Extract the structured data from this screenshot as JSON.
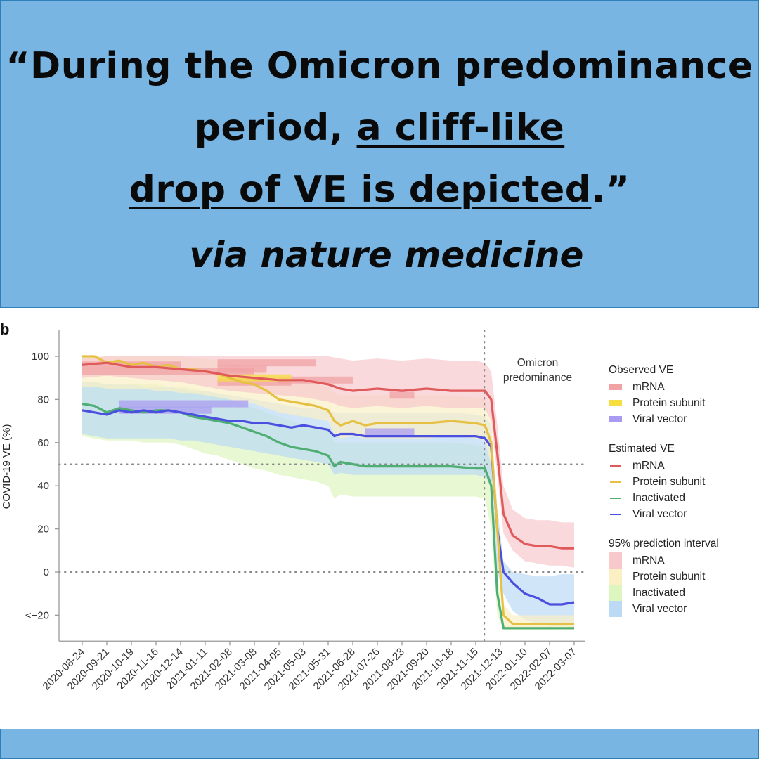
{
  "header": {
    "quote_part1": "“During the Omicron predominance period, ",
    "quote_underlined_1": "a cliff-like",
    "quote_underlined_2": "drop of VE is depicted",
    "quote_end": ".”",
    "source": "via nature medicine"
  },
  "colors": {
    "banner": "#78b5e3",
    "mrna": "#e0595b",
    "protein": "#e6c043",
    "inactivated": "#4fae73",
    "viral": "#4b4fe0",
    "band_mrna": "#f7c9cc",
    "band_protein": "#fbefc4",
    "band_inactivated": "#ddf5bf",
    "band_viral": "#bcdaf4",
    "obs_mrna": "#f0a2a4",
    "obs_protein": "#f5de3e",
    "obs_viral": "#a99cf0"
  },
  "chart_data": {
    "type": "line",
    "panel_label": "b",
    "title": "",
    "xlabel": "",
    "ylabel": "COVID-19 VE (%)",
    "ylim": [
      -32,
      110
    ],
    "x_unit": "weeks since 2020-08-24",
    "xlim": [
      -1,
      81.5
    ],
    "x_ticks": [
      0,
      4,
      8,
      12,
      16,
      20,
      24,
      28,
      32,
      36,
      40,
      44,
      48,
      52,
      56,
      60,
      64,
      68,
      72,
      76,
      80
    ],
    "x_tick_labels": [
      "2020-08-24",
      "2020-09-21",
      "2020-10-19",
      "2020-11-16",
      "2020-12-14",
      "2021-01-11",
      "2021-02-08",
      "2021-03-08",
      "2021-04-05",
      "2021-05-03",
      "2021-05-31",
      "2021-06-28",
      "2021-07-26",
      "2021-08-23",
      "2021-09-20",
      "2021-10-18",
      "2021-11-15",
      "2021-12-13",
      "2022-01-10",
      "2022-02-07",
      "2022-03-07"
    ],
    "y_ticks": [
      100,
      80,
      60,
      40,
      20,
      0,
      -20
    ],
    "y_tick_labels": [
      "100",
      "80",
      "60",
      "40",
      "20",
      "0",
      "<−20"
    ],
    "reference_lines_y": [
      50,
      0
    ],
    "omicron_start_x": 65.4,
    "annotation": "Omicron predominance",
    "grid": false,
    "legend_position": "right",
    "legend": {
      "observed_title": "Observed VE",
      "observed": [
        "mRNA",
        "Protein subunit",
        "Viral vector"
      ],
      "estimated_title": "Estimated VE",
      "estimated": [
        "mRNA",
        "Protein subunit",
        "Inactivated",
        "Viral vector"
      ],
      "interval_title": "95% prediction interval",
      "interval": [
        "mRNA",
        "Protein subunit",
        "Inactivated",
        "Viral vector"
      ]
    },
    "series": [
      {
        "name": "mRNA",
        "key": "mrna",
        "x": [
          0,
          4,
          8,
          12,
          16,
          20,
          24,
          28,
          32,
          36,
          40,
          42,
          44,
          48,
          52,
          56,
          60,
          64,
          65.5,
          66.5,
          67.5,
          68.5,
          70,
          72,
          74,
          76,
          78,
          80
        ],
        "y": [
          96,
          97,
          95,
          95,
          94,
          93,
          91,
          90,
          89,
          89,
          87,
          85,
          84,
          85,
          84,
          85,
          84,
          84,
          84,
          80,
          55,
          27,
          17,
          13,
          12,
          12,
          11,
          11
        ],
        "lower": [
          90,
          91,
          90,
          89,
          88,
          86,
          84,
          83,
          82,
          81,
          79,
          77,
          76,
          77,
          76,
          77,
          76,
          76,
          76,
          70,
          45,
          18,
          10,
          5,
          4,
          3,
          3,
          2
        ],
        "upper": [
          99,
          100,
          100,
          100,
          100,
          100,
          100,
          100,
          100,
          100,
          100,
          99,
          98,
          99,
          98,
          99,
          98,
          98,
          97,
          93,
          68,
          40,
          29,
          25,
          24,
          24,
          23,
          23
        ]
      },
      {
        "name": "Protein subunit",
        "key": "protein",
        "x": [
          0,
          2,
          4,
          6,
          8,
          10,
          12,
          14,
          16,
          18,
          20,
          22,
          24,
          26,
          28,
          30,
          32,
          34,
          36,
          38,
          40,
          41,
          42,
          44,
          46,
          48,
          50,
          52,
          56,
          60,
          64,
          65.5,
          66.5,
          67.5,
          68.5,
          70,
          72,
          76,
          80
        ],
        "y": [
          100,
          100,
          97,
          98,
          96,
          97,
          95,
          96,
          94,
          94,
          93,
          92,
          90,
          88,
          87,
          84,
          80,
          79,
          78,
          77,
          75,
          70,
          68,
          70,
          68,
          69,
          69,
          69,
          69,
          70,
          69,
          68,
          60,
          20,
          -20,
          -24,
          -24,
          -24,
          -24
        ],
        "lower": [
          86,
          86,
          85,
          85,
          85,
          85,
          84,
          84,
          83,
          83,
          82,
          81,
          80,
          79,
          78,
          76,
          74,
          73,
          72,
          71,
          70,
          64,
          62,
          63,
          62,
          62,
          62,
          62,
          62,
          63,
          62,
          61,
          50,
          10,
          -25,
          -26,
          -26,
          -26,
          -26
        ],
        "upper": [
          100,
          100,
          100,
          100,
          100,
          100,
          100,
          100,
          100,
          99,
          99,
          98,
          97,
          95,
          94,
          92,
          90,
          89,
          88,
          87,
          86,
          83,
          82,
          82,
          82,
          82,
          82,
          82,
          82,
          82,
          81,
          80,
          70,
          30,
          -15,
          -20,
          -20,
          -20,
          -20
        ]
      },
      {
        "name": "Inactivated",
        "key": "inactivated",
        "x": [
          0,
          2,
          4,
          6,
          8,
          10,
          12,
          14,
          16,
          18,
          20,
          22,
          24,
          26,
          28,
          30,
          32,
          34,
          36,
          38,
          40,
          41,
          42,
          44,
          46,
          48,
          50,
          52,
          56,
          60,
          64,
          65.5,
          66.5,
          67.5,
          68.5,
          70,
          72,
          76,
          80
        ],
        "y": [
          78,
          77,
          74,
          76,
          75,
          74,
          75,
          75,
          74,
          72,
          71,
          70,
          69,
          67,
          65,
          63,
          60,
          58,
          57,
          56,
          54,
          49,
          51,
          50,
          49,
          49,
          49,
          49,
          49,
          49,
          48,
          48,
          40,
          -10,
          -26,
          -26,
          -26,
          -26,
          -26
        ],
        "lower": [
          63,
          62,
          61,
          61,
          61,
          60,
          60,
          60,
          59,
          57,
          55,
          54,
          52,
          50,
          48,
          47,
          45,
          44,
          43,
          42,
          40,
          34,
          36,
          35,
          35,
          35,
          35,
          35,
          35,
          35,
          35,
          34,
          20,
          -20,
          -27,
          -27,
          -27,
          -27,
          -27
        ],
        "upper": [
          88,
          88,
          87,
          87,
          87,
          87,
          87,
          86,
          86,
          85,
          84,
          82,
          80,
          78,
          76,
          74,
          72,
          70,
          68,
          67,
          66,
          60,
          60,
          60,
          60,
          60,
          60,
          60,
          60,
          60,
          59,
          58,
          50,
          0,
          -25,
          -25,
          -25,
          -25,
          -25
        ]
      },
      {
        "name": "Viral vector",
        "key": "viral",
        "x": [
          0,
          2,
          4,
          6,
          8,
          10,
          12,
          14,
          16,
          18,
          20,
          22,
          24,
          26,
          28,
          30,
          32,
          34,
          36,
          38,
          40,
          41,
          42,
          44,
          46,
          48,
          50,
          52,
          56,
          60,
          64,
          65.5,
          66.5,
          67.5,
          68.5,
          70,
          72,
          74,
          76,
          78,
          80
        ],
        "y": [
          75,
          74,
          73,
          75,
          74,
          75,
          74,
          75,
          74,
          73,
          72,
          71,
          70,
          70,
          69,
          69,
          68,
          67,
          68,
          67,
          66,
          63,
          64,
          64,
          63,
          63,
          63,
          63,
          63,
          63,
          63,
          62,
          58,
          20,
          0,
          -5,
          -10,
          -12,
          -15,
          -15,
          -14
        ],
        "lower": [
          64,
          63,
          62,
          62,
          62,
          62,
          62,
          62,
          61,
          61,
          60,
          59,
          58,
          57,
          56,
          55,
          54,
          53,
          52,
          51,
          50,
          45,
          46,
          45,
          45,
          45,
          45,
          45,
          45,
          45,
          45,
          44,
          40,
          0,
          -10,
          -18,
          -22,
          -24,
          -25,
          -25,
          -25
        ],
        "upper": [
          88,
          88,
          87,
          87,
          87,
          86,
          86,
          86,
          85,
          84,
          84,
          83,
          82,
          81,
          80,
          79,
          78,
          77,
          76,
          76,
          75,
          74,
          74,
          74,
          74,
          74,
          74,
          74,
          74,
          74,
          73,
          72,
          68,
          30,
          5,
          0,
          -1,
          -2,
          -2,
          -1,
          -1
        ]
      }
    ],
    "observed": [
      {
        "key": "mrna",
        "x0": 0,
        "x1": 16,
        "y": 96
      },
      {
        "key": "mrna",
        "x0": 0,
        "x1": 28,
        "y": 93
      },
      {
        "key": "mrna",
        "x0": 22,
        "x1": 38,
        "y": 97
      },
      {
        "key": "mrna",
        "x0": 22,
        "x1": 30,
        "y": 94
      },
      {
        "key": "mrna",
        "x0": 32,
        "x1": 44,
        "y": 89
      },
      {
        "key": "mrna",
        "x0": 22,
        "x1": 34,
        "y": 88
      },
      {
        "key": "mrna",
        "x0": 50,
        "x1": 54,
        "y": 82
      },
      {
        "key": "protein",
        "x0": 22,
        "x1": 34,
        "y": 90
      },
      {
        "key": "viral",
        "x0": 6,
        "x1": 27,
        "y": 78
      },
      {
        "key": "viral",
        "x0": 6,
        "x1": 21,
        "y": 75
      },
      {
        "key": "viral",
        "x0": 46,
        "x1": 54,
        "y": 65
      }
    ]
  }
}
